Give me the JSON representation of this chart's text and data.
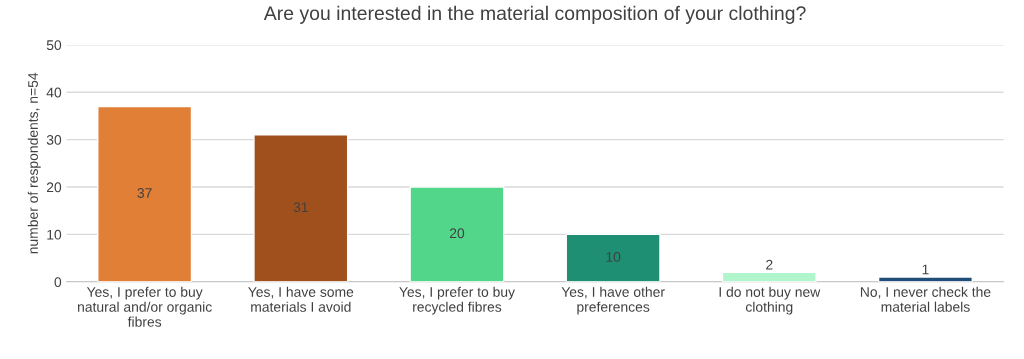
{
  "chart_data": {
    "type": "bar",
    "title": "Are you interested in the material composition of your clothing?",
    "ylabel": "number of respondents, n=54",
    "categories": [
      "Yes, I prefer to buy natural and/or organic fibres",
      "Yes, I have some materials I avoid",
      "Yes, I prefer to buy recycled fibres",
      "Yes, I have other preferences",
      "I do not buy new clothing",
      "No, I never check the material labels"
    ],
    "values": [
      37,
      31,
      20,
      10,
      2,
      1
    ],
    "colors": [
      "#e07f35",
      "#a0501c",
      "#52d68a",
      "#1e8f72",
      "#b0f5cc",
      "#1f4e79"
    ],
    "ylim": [
      0,
      50
    ],
    "yticks": [
      0,
      10,
      20,
      30,
      40,
      50
    ],
    "grid": "y",
    "data_labels": true
  }
}
